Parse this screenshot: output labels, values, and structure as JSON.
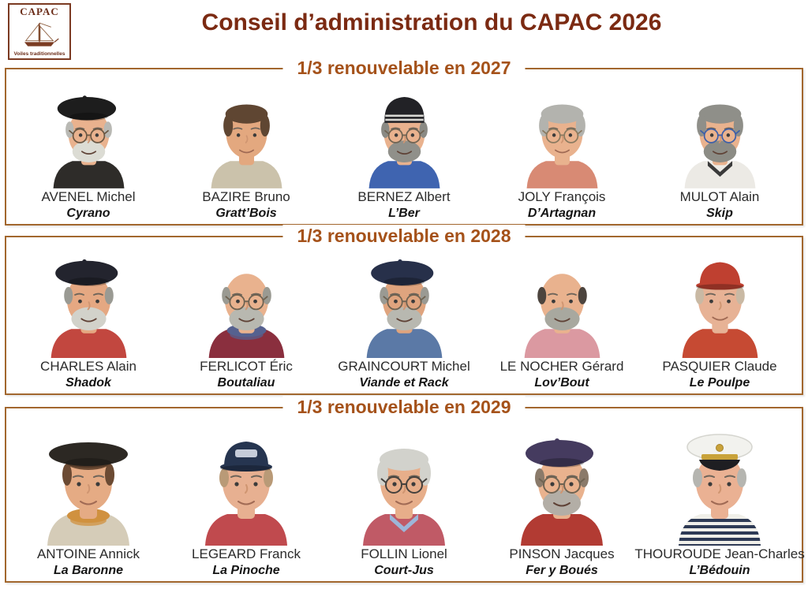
{
  "page": {
    "title": "Conseil d’administration du CAPAC 2026",
    "colors": {
      "title_text": "#7b2a12",
      "section_header_text": "#a5521a",
      "box_border": "#a2672e",
      "background": "#ffffff"
    }
  },
  "logo": {
    "acronym": "CAPAC",
    "tagline": "Voiles traditionnelles",
    "icon": "sailboat-icon",
    "color": "#7b3a22"
  },
  "sections": [
    {
      "label": "1/3 renouvelable en 2027",
      "members": [
        {
          "name": "AVENEL Michel",
          "nickname": "Cyrano",
          "avatar": {
            "hat": "beret",
            "hat_color": "#1d1d1d",
            "hair": "side",
            "hair_color": "#b9b9b4",
            "glasses": true,
            "glasses_color": "#6a5743",
            "beard_color": "#dcdcd4",
            "shirt_color": "#2e2c29",
            "skin_color": "#e9b28e"
          }
        },
        {
          "name": "BAZIRE Bruno",
          "nickname": "Gratt’Bois",
          "avatar": {
            "hat": "none",
            "hair": "full",
            "hair_color": "#5f4632",
            "glasses": false,
            "shirt_color": "#cbc2ab",
            "skin_color": "#e3a87f"
          }
        },
        {
          "name": "BERNEZ Albert",
          "nickname": "L’Ber",
          "avatar": {
            "hat": "beanie",
            "hat_color": "#222226",
            "hat_stripe_color": "#d8d8d4",
            "hair": "side",
            "hair_color": "#8a8a84",
            "glasses": true,
            "glasses_color": "#6f6352",
            "beard_color": "#90908a",
            "shirt_color": "#3f64b0",
            "skin_color": "#e9b28e"
          }
        },
        {
          "name": "JOLY François",
          "nickname": "D’Artagnan",
          "avatar": {
            "hat": "none",
            "hair": "full",
            "hair_color": "#b3b3ae",
            "glasses": true,
            "glasses_color": "#8a7a60",
            "shirt_color": "#d88a74",
            "skin_color": "#e9b28e"
          }
        },
        {
          "name": "MULOT Alain",
          "nickname": "Skip",
          "avatar": {
            "hat": "none",
            "hair": "full",
            "hair_color": "#8f8f89",
            "glasses": true,
            "glasses_color": "#3e5fa8",
            "beard_color": "#8c8c85",
            "shirt_color": "#eceae5",
            "collar_color": "#3a3a3a",
            "skin_color": "#e9b28e"
          }
        }
      ]
    },
    {
      "label": "1/3 renouvelable en 2028",
      "members": [
        {
          "name": "CHARLES Alain",
          "nickname": "Shadok",
          "avatar": {
            "hat": "beret",
            "hat_color": "#23242e",
            "hair": "side",
            "hair_color": "#9a9a93",
            "glasses": false,
            "beard_color": "#d2d2ca",
            "shirt_color": "#c2473f",
            "skin_color": "#e5a882"
          }
        },
        {
          "name": "FERLICOT Éric",
          "nickname": "Boutaliau",
          "avatar": {
            "hat": "none",
            "hair": "side",
            "hair_color": "#9a9a92",
            "glasses": true,
            "glasses_color": "#6f6352",
            "beard_color": "#b8b8b0",
            "scarf_color": "#56618f",
            "shirt_color": "#8a2f3e",
            "skin_color": "#e9b28e"
          }
        },
        {
          "name": "GRAINCOURT Michel",
          "nickname": "Viande et Rack",
          "avatar": {
            "hat": "beret",
            "hat_color": "#27304a",
            "hair": "side",
            "hair_color": "#9a9a93",
            "glasses": true,
            "glasses_color": "#6f6352",
            "beard_color": "#b8b8b0",
            "shirt_color": "#5b79a6",
            "skin_color": "#dfa47e"
          }
        },
        {
          "name": "LE NOCHER Gérard",
          "nickname": "Lov’Bout",
          "avatar": {
            "hat": "none",
            "hair": "side",
            "hair_color": "#4c443e",
            "glasses": false,
            "beard_color": "#a8a89f",
            "shirt_color": "#db99a1",
            "skin_color": "#e9b28e"
          }
        },
        {
          "name": "PASQUIER Claude",
          "nickname": "Le Poulpe",
          "avatar": {
            "hat": "cap",
            "hat_color": "#bf4030",
            "hair": "side",
            "hair_color": "#c9b9a4",
            "glasses": false,
            "shirt_color": "#c64a33",
            "skin_color": "#e7b295"
          }
        }
      ]
    },
    {
      "label": "1/3 renouvelable en 2029",
      "members": [
        {
          "name": "ANTOINE Annick",
          "nickname": "La Baronne",
          "avatar": {
            "hat": "wide-beret",
            "hat_color": "#2c2823",
            "hair": "fringe",
            "hair_color": "#6b4a33",
            "glasses": false,
            "scarf_color": "#d0913f",
            "shirt_color": "#d5ccb8",
            "skin_color": "#e5ab84"
          }
        },
        {
          "name": "LEGEARD Franck",
          "nickname": "La Pinoche",
          "avatar": {
            "hat": "cap",
            "hat_color": "#263550",
            "hat_patch": true,
            "hair": "side",
            "hair_color": "#b99a77",
            "glasses": false,
            "shirt_color": "#c04a4e",
            "skin_color": "#e7b091"
          }
        },
        {
          "name": "FOLLIN Lionel",
          "nickname": "Court-Jus",
          "avatar": {
            "hat": "none",
            "hair": "full",
            "hair_color": "#d2d2cc",
            "glasses": true,
            "glasses_color": "#45413d",
            "collar_color": "#9db6d8",
            "shirt_color": "#c05a66",
            "skin_color": "#e7ae8a"
          }
        },
        {
          "name": "PINSON Jacques",
          "nickname": "Fer y Boués",
          "avatar": {
            "hat": "beret",
            "hat_color": "#453b5f",
            "hair": "side",
            "hair_color": "#8a7a6a",
            "glasses": true,
            "glasses_color": "#6f6352",
            "beard_color": "#b3aea6",
            "shirt_color": "#b23b33",
            "skin_color": "#e9b28e"
          }
        },
        {
          "name": "THOUROUDE Jean-Charles",
          "nickname": "L’Bédouin",
          "avatar": {
            "hat": "captain",
            "hat_color": "#f2f2ee",
            "hair": "side",
            "hair_color": "#b5b5b0",
            "glasses": false,
            "shirt_color": "#f0efe9",
            "stripe_color": "#2e3a55",
            "skin_color": "#eab193"
          }
        }
      ]
    }
  ]
}
